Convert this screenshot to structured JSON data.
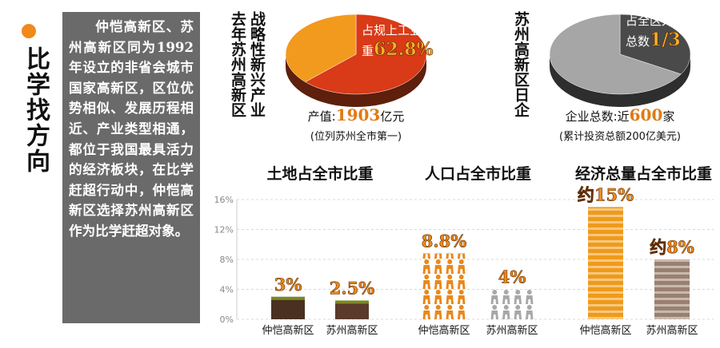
{
  "heading": "比学找方向",
  "sidebar": "仲恺高新区、苏州高新区同为1992年设立的非省会城市国家高新区，区位优势相似、发展历程相近、产业类型相通，都位于我国最具活力的经济板块，在比学赶超行动中，仲恺高新区选择苏州高新区作为比学赶超对象。",
  "chart_data": [
    {
      "type": "pie",
      "title_lines": [
        "去年苏州高新区",
        "战略性新兴产业"
      ],
      "categories": [
        "占规上工业产值比重",
        null
      ],
      "values": [
        62.8,
        37.2
      ],
      "value_labels": [
        "62.8%",
        null
      ],
      "colors": [
        "#d93a17",
        "#f29a1e"
      ],
      "depth_color": "#5e1f0c",
      "caption_prefix": "产值:",
      "caption_value": 1903,
      "caption_unit": "亿元",
      "note": "(位列苏州全市第一)"
    },
    {
      "type": "pie",
      "title_lines": [
        "苏州高新区日企"
      ],
      "categories": [
        "占全区外资企业总数",
        null
      ],
      "values": [
        0.333,
        0.667
      ],
      "value_labels": [
        "1/3",
        null
      ],
      "colors": [
        "#4a4a4a",
        "#a6a6a6"
      ],
      "depth_color": "#2e2e2e",
      "caption_prefix": "企业总数:近",
      "caption_value": 600,
      "caption_unit": "家",
      "note": "(累计投资总额200亿美元)"
    },
    {
      "type": "bar",
      "ylim": [
        0,
        16
      ],
      "yticks": [
        {
          "value": 0,
          "label": "0%"
        },
        {
          "value": 4,
          "label": "4%"
        },
        {
          "value": 8,
          "label": "8%"
        },
        {
          "value": 12,
          "label": "12%"
        },
        {
          "value": 16,
          "label": "16%"
        }
      ],
      "grid": true,
      "groups": [
        {
          "title": "土地占全市比重",
          "style": "solid",
          "categories": [
            "仲恺高新区",
            "苏州高新区"
          ],
          "values": [
            3,
            2.5
          ],
          "value_labels": [
            "3%",
            "2.5%"
          ],
          "colors": [
            "#4a3020",
            "#5a3a2a"
          ]
        },
        {
          "title": "人口占全市比重",
          "style": "people",
          "categories": [
            "仲恺高新区",
            "苏州高新区"
          ],
          "values": [
            8.8,
            4
          ],
          "value_labels": [
            "8.8%",
            "4%"
          ],
          "colors": [
            "#e8881c",
            "#a8a8a8"
          ]
        },
        {
          "title": "经济总量占全市比重",
          "style": "stripes",
          "categories": [
            "仲恺高新区",
            "苏州高新区"
          ],
          "values": [
            15,
            8
          ],
          "value_labels": [
            "约15%",
            "约8%"
          ],
          "colors": [
            "#f09a1a",
            "#9a8070"
          ]
        }
      ]
    }
  ]
}
